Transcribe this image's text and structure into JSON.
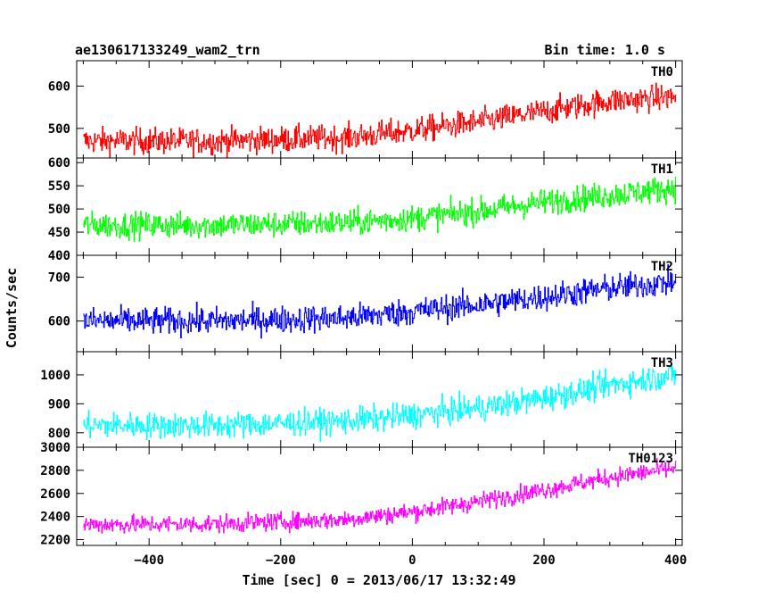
{
  "header": {
    "title": "ae130617133249_wam2_trn",
    "bin_time": "Bin time: 1.0 s"
  },
  "chart_data": {
    "type": "line",
    "x_range": [
      -510,
      410
    ],
    "x_tick_values": [
      -400,
      -200,
      0,
      200,
      400
    ],
    "x_tick_labels": [
      "−400",
      "−200",
      "0",
      "200",
      "400"
    ],
    "xlabel": "Time [sec] 0 = 2013/06/17 13:32:49",
    "ylabel": "Counts/sec",
    "grid": false,
    "bin_time_s": 1.0,
    "data_x_start": -500,
    "data_x_end": 400,
    "series": [
      {
        "name": "TH0",
        "color": "#ff0000",
        "ylim": [
          430,
          660
        ],
        "y_ticks": [
          500,
          600
        ],
        "y_tick_labels": [
          "500",
          "600"
        ],
        "trend_x": [
          -500,
          -300,
          -100,
          0,
          100,
          200,
          300,
          400
        ],
        "trend_y": [
          470,
          470,
          478,
          495,
          515,
          540,
          565,
          575
        ],
        "noise": 22
      },
      {
        "name": "TH1",
        "color": "#00ff00",
        "ylim": [
          400,
          610
        ],
        "y_ticks": [
          400,
          450,
          500,
          550,
          600
        ],
        "y_tick_labels": [
          "400",
          "450",
          "500",
          "550",
          "600"
        ],
        "trend_x": [
          -500,
          -300,
          -100,
          0,
          100,
          200,
          300,
          400
        ],
        "trend_y": [
          465,
          465,
          470,
          480,
          495,
          515,
          530,
          545
        ],
        "noise": 20
      },
      {
        "name": "TH2",
        "color": "#0000ff",
        "ylim": [
          530,
          750
        ],
        "y_ticks": [
          600,
          700
        ],
        "y_tick_labels": [
          "600",
          "700"
        ],
        "trend_x": [
          -500,
          -300,
          -100,
          0,
          100,
          200,
          300,
          400
        ],
        "trend_y": [
          600,
          600,
          607,
          622,
          637,
          655,
          675,
          690
        ],
        "noise": 22
      },
      {
        "name": "TH3",
        "color": "#00ffff",
        "ylim": [
          750,
          1080
        ],
        "y_ticks": [
          800,
          900,
          1000
        ],
        "y_tick_labels": [
          "800",
          "900",
          "1000"
        ],
        "trend_x": [
          -500,
          -300,
          -100,
          0,
          100,
          200,
          300,
          400
        ],
        "trend_y": [
          825,
          825,
          840,
          860,
          885,
          920,
          965,
          1000
        ],
        "noise": 32
      },
      {
        "name": "TH0123",
        "color": "#ff00ff",
        "ylim": [
          2150,
          3000
        ],
        "y_ticks": [
          2200,
          2400,
          2600,
          2800,
          3000
        ],
        "y_tick_labels": [
          "2200",
          "2400",
          "2600",
          "2800",
          "3000"
        ],
        "trend_x": [
          -500,
          -300,
          -100,
          0,
          100,
          200,
          300,
          400
        ],
        "trend_y": [
          2330,
          2335,
          2375,
          2440,
          2530,
          2630,
          2740,
          2820
        ],
        "noise": 55
      }
    ]
  }
}
